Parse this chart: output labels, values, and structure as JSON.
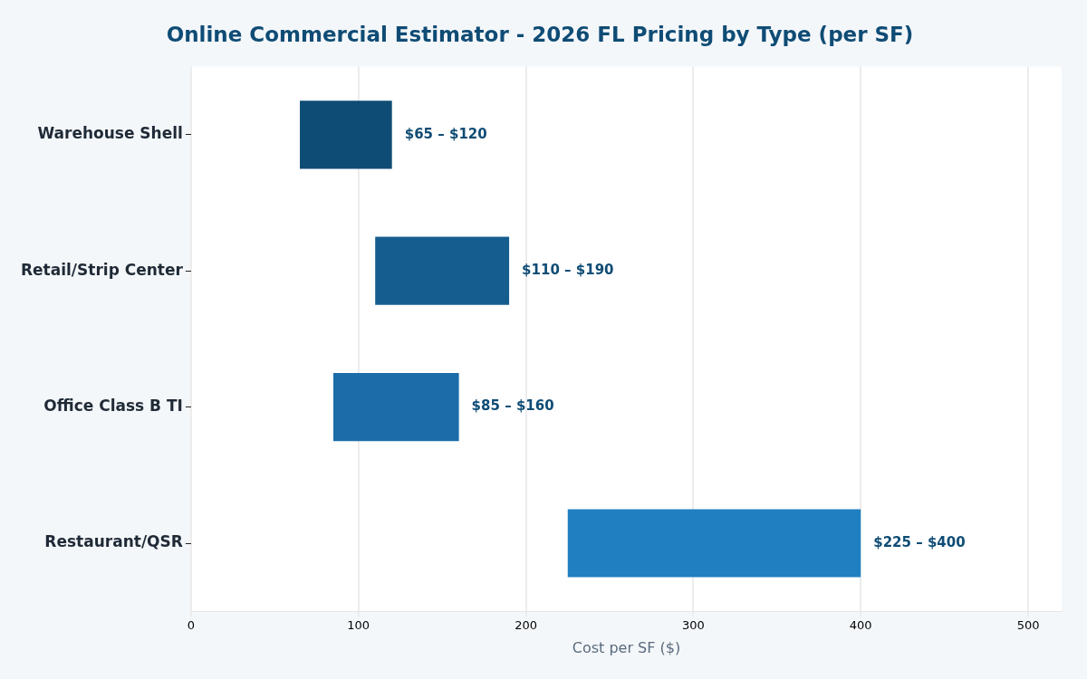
{
  "chart_data": {
    "type": "bar",
    "orientation": "horizontal",
    "title": "Online Commercial Estimator - 2026 FL Pricing by Type (per SF)",
    "xlabel": "Cost per SF ($)",
    "categories": [
      "Warehouse Shell",
      "Retail/Strip Center",
      "Office Class B TI",
      "Restaurant/QSR"
    ],
    "base": [
      65,
      110,
      85,
      225
    ],
    "values": [
      55,
      80,
      75,
      175
    ],
    "colors": [
      "#0f4c75",
      "#155d8f",
      "#1b6ca8",
      "#1f7fc1"
    ],
    "annotations": [
      {
        "text": "$65 – $120",
        "x": 120,
        "y": "Warehouse Shell"
      },
      {
        "text": "$110 – $190",
        "x": 190,
        "y": "Retail/Strip Center"
      },
      {
        "text": "$85 – $160",
        "x": 160,
        "y": "Office Class B TI"
      },
      {
        "text": "$225 – $400",
        "x": 400,
        "y": "Restaurant/QSR"
      }
    ],
    "xlim": [
      0,
      520
    ],
    "xticks": [
      0,
      100,
      200,
      300,
      400,
      500
    ],
    "grid": "x",
    "legend": false
  }
}
